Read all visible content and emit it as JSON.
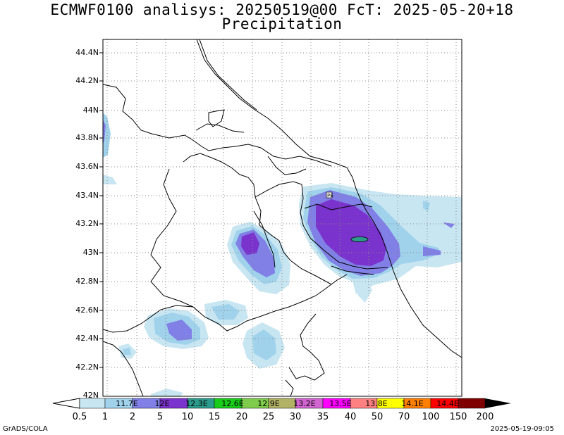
{
  "title": {
    "line1": "ECMWF0100 analisys: 20250519@00 FcT: 2025-05-20+18",
    "line2": "Precipitation"
  },
  "map": {
    "lat_labels": [
      "44.4N",
      "44.2N",
      "44N",
      "43.8N",
      "43.6N",
      "43.4N",
      "43.2N",
      "43N",
      "42.8N",
      "42.6N",
      "42.4N",
      "42.2N",
      "42N"
    ],
    "lon_labels": [
      "11.7E",
      "12E",
      "12.3E",
      "12.6E",
      "12.9E",
      "13.2E",
      "13.5E",
      "13.8E",
      "14.1E",
      "14.4E"
    ],
    "station_marker": "PE"
  },
  "colorbar": {
    "levels": [
      "0.5",
      "1",
      "2",
      "5",
      "10",
      "15",
      "20",
      "25",
      "30",
      "35",
      "40",
      "50",
      "70",
      "100",
      "150",
      "200"
    ],
    "colors": [
      "#ffffff",
      "#c8e6f2",
      "#a0d2ec",
      "#7fbfe4",
      "#8080e6",
      "#7a33cc",
      "#2c9b8b",
      "#19cc19",
      "#7fcc4c",
      "#b2b266",
      "#d264d2",
      "#ff00ff",
      "#ff8080",
      "#ffff00",
      "#ff7f00",
      "#ff0000",
      "#7f0000"
    ]
  },
  "footer": {
    "left": "GrADS/COLA",
    "right": "2025-05-19-09:05"
  }
}
